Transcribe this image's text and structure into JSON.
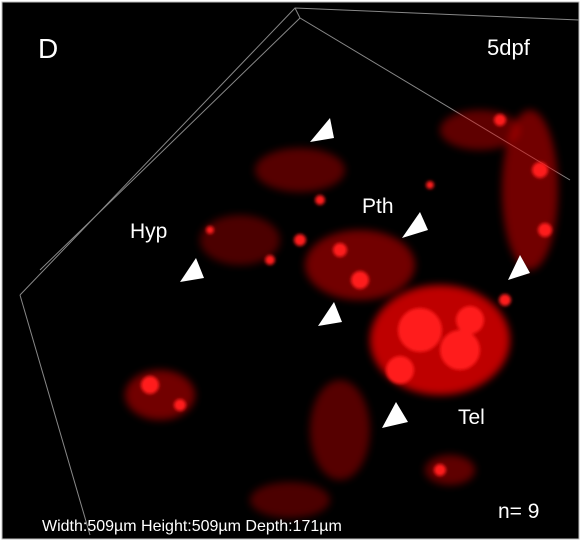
{
  "panel_label": "D",
  "stage": "5dpf",
  "regions": [
    "Hyp",
    "Pth",
    "Tel"
  ],
  "count": "n= 9",
  "dimensions": "Width:509µm Height:509µm Depth:171µm"
}
